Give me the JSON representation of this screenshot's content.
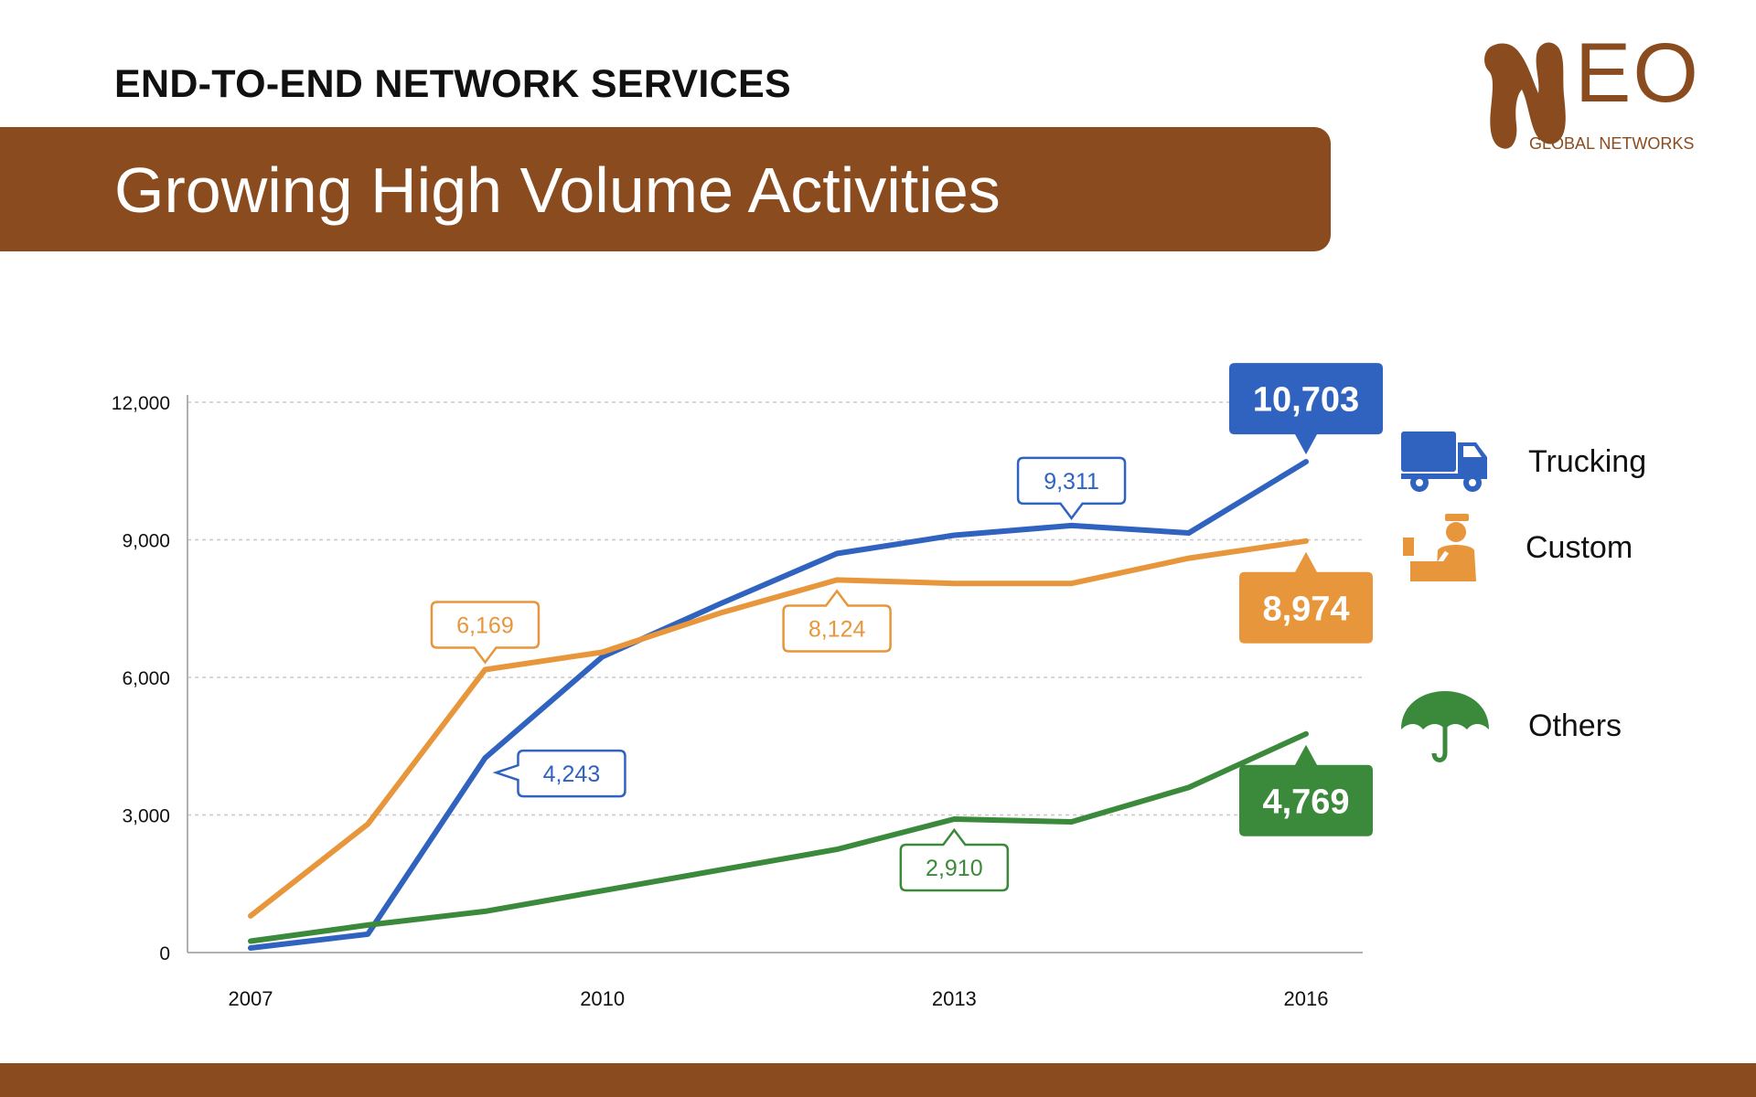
{
  "header": {
    "heading": "END-TO-END NETWORK SERVICES",
    "banner_title": "Growing High Volume Activities"
  },
  "logo": {
    "word": "EO",
    "subtitle": "GLOBAL NETWORKS",
    "color": "#8a4b1e"
  },
  "colors": {
    "brand": "#8a4b1e",
    "trucking": "#2f63bf",
    "custom": "#e8963c",
    "others": "#3b8a3c"
  },
  "legend": [
    {
      "label": "Trucking",
      "icon": "truck-icon",
      "color": "#2f63bf"
    },
    {
      "label": "Custom",
      "icon": "customs-officer-icon",
      "color": "#e8963c"
    },
    {
      "label": "Others",
      "icon": "umbrella-icon",
      "color": "#3b8a3c"
    }
  ],
  "chart_data": {
    "type": "line",
    "x": [
      2007,
      2008,
      2009,
      2010,
      2011,
      2012,
      2013,
      2014,
      2015,
      2016
    ],
    "x_tick_labels": [
      "2007",
      "2010",
      "2013",
      "2016"
    ],
    "y_tick_labels": [
      "0",
      "3,000",
      "6,000",
      "9,000",
      "12,000"
    ],
    "ylim": [
      0,
      12000
    ],
    "grid": true,
    "series": [
      {
        "name": "Trucking",
        "color": "#2f63bf",
        "values": [
          100,
          400,
          4243,
          6450,
          7600,
          8700,
          9100,
          9311,
          9150,
          10703
        ]
      },
      {
        "name": "Custom",
        "color": "#e8963c",
        "values": [
          800,
          2800,
          6169,
          6550,
          7400,
          8124,
          8050,
          8050,
          8600,
          8974
        ]
      },
      {
        "name": "Others",
        "color": "#3b8a3c",
        "values": [
          250,
          600,
          900,
          1350,
          1800,
          2250,
          2910,
          2850,
          3600,
          4769
        ]
      }
    ],
    "callouts": [
      {
        "series": 0,
        "index": 2,
        "label": "4,243",
        "style": "outline",
        "side": "right"
      },
      {
        "series": 0,
        "index": 7,
        "label": "9,311",
        "style": "outline",
        "side": "above"
      },
      {
        "series": 0,
        "index": 9,
        "label": "10,703",
        "style": "filled",
        "side": "above"
      },
      {
        "series": 1,
        "index": 2,
        "label": "6,169",
        "style": "outline",
        "side": "above"
      },
      {
        "series": 1,
        "index": 5,
        "label": "8,124",
        "style": "outline",
        "side": "below"
      },
      {
        "series": 1,
        "index": 9,
        "label": "8,974",
        "style": "filled",
        "side": "below"
      },
      {
        "series": 2,
        "index": 6,
        "label": "2,910",
        "style": "outline",
        "side": "below"
      },
      {
        "series": 2,
        "index": 9,
        "label": "4,769",
        "style": "filled",
        "side": "below"
      }
    ]
  }
}
